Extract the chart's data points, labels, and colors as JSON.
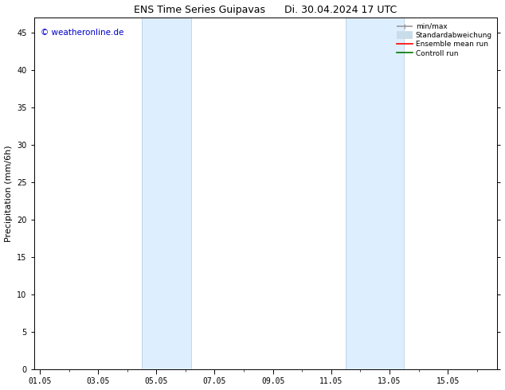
{
  "title": "ENS Time Series Guipavas      Di. 30.04.2024 17 UTC",
  "ylabel": "Precipitation (mm/6h)",
  "watermark": "© weatheronline.de",
  "watermark_color": "#0000cc",
  "ylim": [
    0,
    47
  ],
  "yticks": [
    0,
    5,
    10,
    15,
    20,
    25,
    30,
    35,
    40,
    45
  ],
  "xlim": [
    -0.2,
    15.7
  ],
  "xtick_labels": [
    "01.05",
    "03.05",
    "05.05",
    "07.05",
    "09.05",
    "11.05",
    "13.05",
    "15.05"
  ],
  "xtick_positions": [
    0,
    2,
    4,
    6,
    8,
    10,
    12,
    14
  ],
  "shaded_bands": [
    {
      "xstart": 3.5,
      "xend": 5.2
    },
    {
      "xstart": 10.5,
      "xend": 12.5
    }
  ],
  "shaded_color": "#ddeeff",
  "shaded_edge_color": "#b8d0e8",
  "bg_color": "#ffffff",
  "legend_entries": [
    {
      "label": "min/max",
      "color": "#999999",
      "lw": 1.2,
      "style": "line_with_caps"
    },
    {
      "label": "Standardabweichung",
      "color": "#c8dcea",
      "lw": 7,
      "style": "thick"
    },
    {
      "label": "Ensemble mean run",
      "color": "#ff0000",
      "lw": 1.2,
      "style": "solid"
    },
    {
      "label": "Controll run",
      "color": "#007700",
      "lw": 1.2,
      "style": "solid"
    }
  ],
  "tick_font_size": 7,
  "label_font_size": 8,
  "title_font_size": 9,
  "watermark_font_size": 7.5
}
